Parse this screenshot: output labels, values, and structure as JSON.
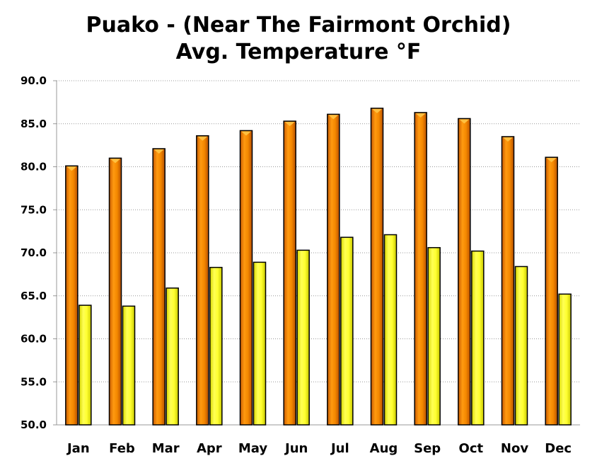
{
  "title_line1": "Puako - (Near The Fairmont Orchid)",
  "title_line2": "Avg. Temperature  °F",
  "chart_data": {
    "type": "bar",
    "categories": [
      "Jan",
      "Feb",
      "Mar",
      "Apr",
      "May",
      "Jun",
      "Jul",
      "Aug",
      "Sep",
      "Oct",
      "Nov",
      "Dec"
    ],
    "series": [
      {
        "values": [
          80.1,
          81.0,
          82.1,
          83.6,
          84.2,
          85.3,
          86.1,
          86.8,
          86.3,
          85.6,
          83.5,
          81.1
        ],
        "color": "#f08a00"
      },
      {
        "values": [
          63.9,
          63.8,
          65.9,
          68.3,
          68.9,
          70.3,
          71.8,
          72.1,
          70.6,
          70.2,
          68.4,
          65.2
        ],
        "color": "#ffff33"
      }
    ],
    "ylim": [
      50.0,
      90.0
    ],
    "yticks": [
      "50.0",
      "55.0",
      "60.0",
      "65.0",
      "70.0",
      "75.0",
      "80.0",
      "85.0",
      "90.0"
    ],
    "grid": true,
    "colors": {
      "grid": "#999999",
      "axis": "#999999",
      "bar_outline": "#000000"
    }
  }
}
